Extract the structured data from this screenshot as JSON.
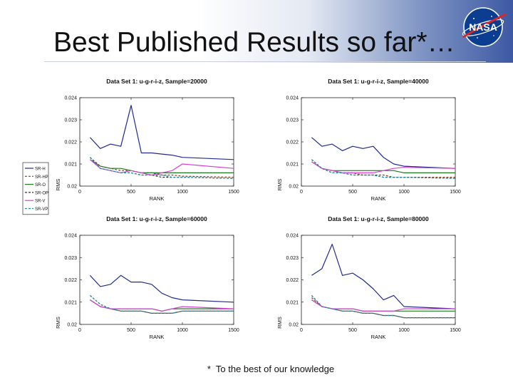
{
  "slide": {
    "title": "Best Published Results so far*…",
    "footnote": "*  To the best of our knowledge",
    "logo_text": "NASA"
  },
  "chart_data": [
    {
      "type": "line",
      "title": "Data Set 1: u-g-r-i-z, Sample=20000",
      "xlabel": "RANK",
      "ylabel": "RMS",
      "xlim": [
        0,
        1500
      ],
      "ylim": [
        0.02,
        0.024
      ],
      "xticks": [
        0,
        500,
        1000,
        1500
      ],
      "yticks": [
        "0.02",
        "0.021",
        "0.022",
        "0.023",
        "0.024"
      ],
      "grid": false,
      "legend": {
        "position": "left",
        "entries": [
          "SR-H",
          "SR-HP",
          "SR-O",
          "SR-OP",
          "SR-V",
          "SR-VP"
        ]
      },
      "x": [
        100,
        200,
        300,
        400,
        500,
        600,
        700,
        800,
        900,
        1000,
        1500
      ],
      "series": [
        {
          "name": "SR-H",
          "color": "#1f2b8f",
          "dash": "solid",
          "values": [
            0.0222,
            0.0217,
            0.0219,
            0.0218,
            0.02365,
            0.0215,
            0.0215,
            0.02145,
            0.0214,
            0.0213,
            0.0212
          ]
        },
        {
          "name": "SR-HP",
          "color": "#8b3a1a",
          "dash": "dash",
          "values": [
            0.0213,
            0.0209,
            0.0208,
            0.0207,
            0.0207,
            0.0206,
            0.0206,
            0.0205,
            0.0205,
            0.02045,
            0.0204
          ]
        },
        {
          "name": "SR-O",
          "color": "#1e7a1e",
          "dash": "solid",
          "values": [
            0.0212,
            0.0209,
            0.0208,
            0.0208,
            0.0207,
            0.0206,
            0.0206,
            0.0206,
            0.0206,
            0.0206,
            0.0206
          ]
        },
        {
          "name": "SR-OP",
          "color": "#333333",
          "dash": "dash",
          "values": [
            0.0213,
            0.0208,
            0.0207,
            0.0206,
            0.0206,
            0.0205,
            0.0205,
            0.0204,
            0.0204,
            0.0204,
            0.02035
          ]
        },
        {
          "name": "SR-V",
          "color": "#d63fd6",
          "dash": "solid",
          "values": [
            0.0212,
            0.0208,
            0.0207,
            0.0206,
            0.0207,
            0.0206,
            0.0205,
            0.0206,
            0.0207,
            0.021,
            0.0208
          ]
        },
        {
          "name": "SR-VP",
          "color": "#1f8fa8",
          "dash": "dash",
          "values": [
            0.0213,
            0.0208,
            0.0207,
            0.0206,
            0.0206,
            0.0205,
            0.0205,
            0.0205,
            0.0204,
            0.0204,
            0.02035
          ]
        }
      ]
    },
    {
      "type": "line",
      "title": "Data Set 1: u-g-r-i-z, Sample=40000",
      "xlabel": "RANK",
      "ylabel": "RMS",
      "xlim": [
        0,
        1500
      ],
      "ylim": [
        0.02,
        0.024
      ],
      "xticks": [
        0,
        500,
        1000,
        1500
      ],
      "yticks": [
        "0.02",
        "0.021",
        "0.022",
        "0.023",
        "0.024"
      ],
      "grid": false,
      "x": [
        100,
        200,
        300,
        400,
        500,
        600,
        700,
        800,
        900,
        1000,
        1500
      ],
      "series": [
        {
          "name": "SR-H",
          "color": "#1f2b8f",
          "dash": "solid",
          "values": [
            0.0222,
            0.0218,
            0.0219,
            0.0216,
            0.0218,
            0.0217,
            0.0218,
            0.0213,
            0.021,
            0.0209,
            0.0208
          ]
        },
        {
          "name": "SR-HP",
          "color": "#8b3a1a",
          "dash": "dash",
          "values": [
            0.0212,
            0.0208,
            0.0207,
            0.0206,
            0.0206,
            0.0205,
            0.0205,
            0.0205,
            0.0204,
            0.0204,
            0.0204
          ]
        },
        {
          "name": "SR-O",
          "color": "#1e7a1e",
          "dash": "solid",
          "values": [
            0.0211,
            0.0208,
            0.0207,
            0.0207,
            0.0207,
            0.0207,
            0.0207,
            0.0207,
            0.0207,
            0.0206,
            0.0206
          ]
        },
        {
          "name": "SR-OP",
          "color": "#333333",
          "dash": "dash",
          "values": [
            0.0212,
            0.0208,
            0.0206,
            0.0206,
            0.0205,
            0.0205,
            0.0205,
            0.0204,
            0.0204,
            0.0204,
            0.02035
          ]
        },
        {
          "name": "SR-V",
          "color": "#d63fd6",
          "dash": "solid",
          "values": [
            0.0211,
            0.0208,
            0.0207,
            0.0206,
            0.0206,
            0.0206,
            0.0206,
            0.0207,
            0.0208,
            0.02085,
            0.0208
          ]
        },
        {
          "name": "SR-VP",
          "color": "#1f8fa8",
          "dash": "dash",
          "values": [
            0.0212,
            0.0208,
            0.0206,
            0.0206,
            0.0205,
            0.0205,
            0.0205,
            0.0204,
            0.0204,
            0.0204,
            0.02035
          ]
        }
      ]
    },
    {
      "type": "line",
      "title": "Data Set 1: u-g-r-i-z, Sample=60000",
      "xlabel": "RANK",
      "ylabel": "RMS",
      "xlim": [
        0,
        1500
      ],
      "ylim": [
        0.02,
        0.024
      ],
      "xticks": [
        0,
        500,
        1000,
        1500
      ],
      "yticks": [
        "0.02",
        "0.021",
        "0.022",
        "0.023",
        "0.024"
      ],
      "grid": false,
      "x": [
        100,
        200,
        300,
        400,
        500,
        600,
        700,
        800,
        900,
        1000,
        1500
      ],
      "series": [
        {
          "name": "SR-H",
          "color": "#1f2b8f",
          "dash": "solid",
          "values": [
            0.0222,
            0.0217,
            0.0218,
            0.0222,
            0.0219,
            0.0219,
            0.0218,
            0.0214,
            0.0212,
            0.0211,
            0.021
          ]
        },
        {
          "name": "SR-HP",
          "color": "#8b3a1a",
          "dash": "dash",
          "values": [
            0.0211,
            0.0208,
            0.0207,
            0.0206,
            0.0206,
            0.0206,
            0.0205,
            0.0205,
            0.0205,
            0.0206,
            0.0206
          ]
        },
        {
          "name": "SR-O",
          "color": "#1e7a1e",
          "dash": "solid",
          "values": [
            0.0211,
            0.0208,
            0.0207,
            0.0207,
            0.0207,
            0.0207,
            0.0207,
            0.0206,
            0.0207,
            0.0207,
            0.0207
          ]
        },
        {
          "name": "SR-OP",
          "color": "#333333",
          "dash": "dash",
          "values": [
            0.0213,
            0.0209,
            0.0207,
            0.0206,
            0.0206,
            0.0206,
            0.0205,
            0.0205,
            0.0205,
            0.0206,
            0.0206
          ]
        },
        {
          "name": "SR-V",
          "color": "#d63fd6",
          "dash": "solid",
          "values": [
            0.0211,
            0.0208,
            0.0207,
            0.0207,
            0.0207,
            0.0207,
            0.0207,
            0.0206,
            0.0207,
            0.0208,
            0.0207
          ]
        },
        {
          "name": "SR-VP",
          "color": "#1f8fa8",
          "dash": "dash",
          "values": [
            0.0213,
            0.0209,
            0.0207,
            0.0206,
            0.0206,
            0.0206,
            0.0205,
            0.0205,
            0.0205,
            0.0206,
            0.0206
          ]
        }
      ]
    },
    {
      "type": "line",
      "title": "Data Set 1: u-g-r-i-z, Sample=80000",
      "xlabel": "RANK",
      "ylabel": "RMS",
      "xlim": [
        0,
        1500
      ],
      "ylim": [
        0.02,
        0.024
      ],
      "xticks": [
        0,
        500,
        1000,
        1500
      ],
      "yticks": [
        "0.02",
        "0.021",
        "0.022",
        "0.023",
        "0.024"
      ],
      "grid": false,
      "x": [
        100,
        200,
        300,
        400,
        500,
        600,
        700,
        800,
        900,
        1000,
        1500
      ],
      "series": [
        {
          "name": "SR-H",
          "color": "#1f2b8f",
          "dash": "solid",
          "values": [
            0.0222,
            0.0225,
            0.0236,
            0.0222,
            0.0223,
            0.022,
            0.0216,
            0.0211,
            0.0213,
            0.0208,
            0.0207
          ]
        },
        {
          "name": "SR-HP",
          "color": "#8b3a1a",
          "dash": "dash",
          "values": [
            0.0212,
            0.0208,
            0.0207,
            0.0206,
            0.0206,
            0.0205,
            0.0205,
            0.0204,
            0.0204,
            0.0203,
            0.0203
          ]
        },
        {
          "name": "SR-O",
          "color": "#1e7a1e",
          "dash": "solid",
          "values": [
            0.0211,
            0.0208,
            0.0207,
            0.0207,
            0.0207,
            0.0206,
            0.0206,
            0.0206,
            0.0206,
            0.0206,
            0.0206
          ]
        },
        {
          "name": "SR-OP",
          "color": "#333333",
          "dash": "dash",
          "values": [
            0.0213,
            0.0208,
            0.0207,
            0.0206,
            0.0206,
            0.0205,
            0.0205,
            0.0204,
            0.0204,
            0.0203,
            0.0203
          ]
        },
        {
          "name": "SR-V",
          "color": "#d63fd6",
          "dash": "solid",
          "values": [
            0.0211,
            0.0208,
            0.0207,
            0.0207,
            0.0207,
            0.0206,
            0.0206,
            0.0206,
            0.0206,
            0.0207,
            0.0207
          ]
        },
        {
          "name": "SR-VP",
          "color": "#1f8fa8",
          "dash": "dash",
          "values": [
            0.0213,
            0.0208,
            0.0207,
            0.0206,
            0.0206,
            0.0205,
            0.0205,
            0.0204,
            0.0204,
            0.0203,
            0.0203
          ]
        }
      ]
    }
  ]
}
